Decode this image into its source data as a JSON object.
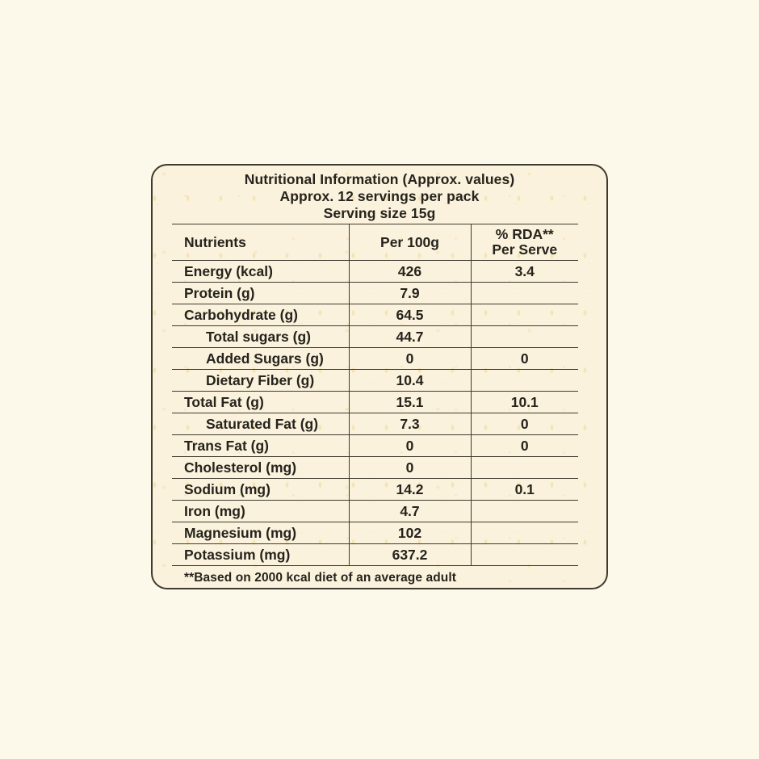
{
  "colors": {
    "page_bg": "#FCF8EA",
    "card_bg": "#FAF2DC",
    "line": "#3E3A2F",
    "text": "#26231D"
  },
  "label": {
    "title": "Nutritional Information (Approx. values)",
    "servings": "Approx. 12 servings per pack",
    "serving_size": "Serving size 15g",
    "footnote": "**Based on 2000 kcal diet of an average adult"
  },
  "table": {
    "columns": {
      "nutrients": "Nutrients",
      "per_100g": "Per 100g",
      "rda_line1": "% RDA**",
      "rda_line2": "Per Serve"
    },
    "rows": [
      {
        "nutrient": "Energy (kcal)",
        "per_100g": "426",
        "rda_per_serve": "3.4",
        "indent": false
      },
      {
        "nutrient": "Protein (g)",
        "per_100g": "7.9",
        "rda_per_serve": "",
        "indent": false
      },
      {
        "nutrient": "Carbohydrate (g)",
        "per_100g": "64.5",
        "rda_per_serve": "",
        "indent": false
      },
      {
        "nutrient": "Total sugars (g)",
        "per_100g": "44.7",
        "rda_per_serve": "",
        "indent": true
      },
      {
        "nutrient": "Added Sugars (g)",
        "per_100g": "0",
        "rda_per_serve": "0",
        "indent": true
      },
      {
        "nutrient": "Dietary Fiber (g)",
        "per_100g": "10.4",
        "rda_per_serve": "",
        "indent": true
      },
      {
        "nutrient": "Total Fat (g)",
        "per_100g": "15.1",
        "rda_per_serve": "10.1",
        "indent": false
      },
      {
        "nutrient": "Saturated Fat (g)",
        "per_100g": "7.3",
        "rda_per_serve": "0",
        "indent": true
      },
      {
        "nutrient": "Trans Fat (g)",
        "per_100g": "0",
        "rda_per_serve": "0",
        "indent": false
      },
      {
        "nutrient": "Cholesterol (mg)",
        "per_100g": "0",
        "rda_per_serve": "",
        "indent": false
      },
      {
        "nutrient": "Sodium (mg)",
        "per_100g": "14.2",
        "rda_per_serve": "0.1",
        "indent": false
      },
      {
        "nutrient": "Iron (mg)",
        "per_100g": "4.7",
        "rda_per_serve": "",
        "indent": false
      },
      {
        "nutrient": "Magnesium (mg)",
        "per_100g": "102",
        "rda_per_serve": "",
        "indent": false
      },
      {
        "nutrient": "Potassium (mg)",
        "per_100g": "637.2",
        "rda_per_serve": "",
        "indent": false
      }
    ]
  }
}
